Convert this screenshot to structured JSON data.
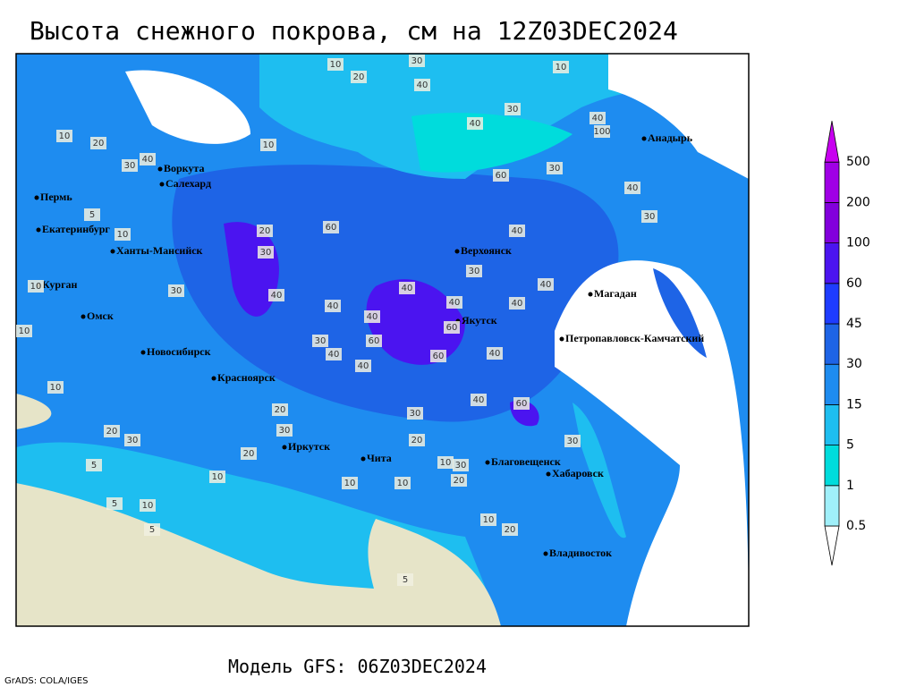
{
  "title": "Высота снежного покрова, см на 12Z03DEC2024",
  "model_line": "Модель GFS: 06Z03DEC2024",
  "credit": "GrADS: COLA/IGES",
  "cities": [
    "Воркута",
    "Салехард",
    "Пермь",
    "Екатеринбург",
    "Ханты-Мансийск",
    "Курган",
    "Омск",
    "Новосибирск",
    "Красноярск",
    "Иркутск",
    "Чита",
    "Верхоянск",
    "Якутск",
    "Магадан",
    "Анадырь",
    "Петропавловск-Камчатский",
    "Благовещенск",
    "Хабаровск",
    "Владивосток"
  ],
  "contour_labels": [
    10,
    20,
    30,
    10,
    5,
    10,
    10,
    30,
    10,
    10,
    20,
    30,
    40,
    20,
    10,
    30,
    40,
    30,
    40,
    60,
    30,
    100,
    40,
    40,
    30,
    20,
    30,
    40,
    60,
    40,
    40,
    40,
    60,
    40,
    60,
    60,
    40,
    30,
    40,
    40,
    40,
    60,
    30,
    10,
    20,
    20,
    30,
    40,
    40,
    10,
    20,
    10,
    10,
    5,
    5,
    10,
    10,
    20,
    30,
    20,
    40,
    30,
    30,
    10,
    5,
    5
  ],
  "legend": {
    "levels": [
      0.5,
      1,
      5,
      15,
      30,
      45,
      60,
      100,
      200,
      500
    ],
    "colors": [
      "#ffffff",
      "#a0f0fa",
      "#00dcdc",
      "#1ebef0",
      "#1e8cf0",
      "#1e64e6",
      "#1e3cff",
      "#4b14f0",
      "#8200dc",
      "#a000e6",
      "#c800f0"
    ]
  }
}
